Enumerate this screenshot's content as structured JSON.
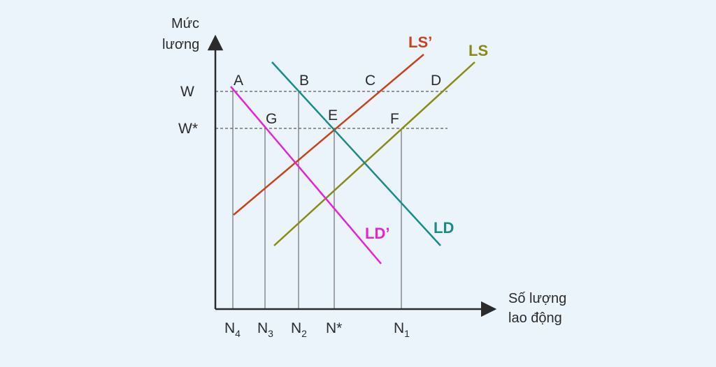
{
  "diagram": {
    "y_axis_title": [
      "Mức",
      "lương"
    ],
    "x_axis_title": [
      "Số lượng",
      "lao động"
    ],
    "wage_levels": [
      {
        "id": "W",
        "label": "W"
      },
      {
        "id": "Wstar",
        "label": "W*"
      }
    ],
    "quantity_labels": [
      {
        "id": "N4",
        "main": "N",
        "sub": "4"
      },
      {
        "id": "N3",
        "main": "N",
        "sub": "3"
      },
      {
        "id": "N2",
        "main": "N",
        "sub": "2"
      },
      {
        "id": "Nstar",
        "main": "N*",
        "sub": ""
      },
      {
        "id": "N1",
        "main": "N",
        "sub": "1"
      }
    ],
    "points": [
      "A",
      "B",
      "C",
      "D",
      "E",
      "F",
      "G"
    ],
    "curves": [
      {
        "id": "LSprime",
        "label": "LS’",
        "color": "#c8431b"
      },
      {
        "id": "LS",
        "label": "LS",
        "color": "#8a8a12"
      },
      {
        "id": "LD",
        "label": "LD",
        "color": "#1a8c86"
      },
      {
        "id": "LDprime",
        "label": "LD’",
        "color": "#e324d6"
      }
    ],
    "axis_color": "#2b2b2b",
    "guide_color": "#333333"
  }
}
